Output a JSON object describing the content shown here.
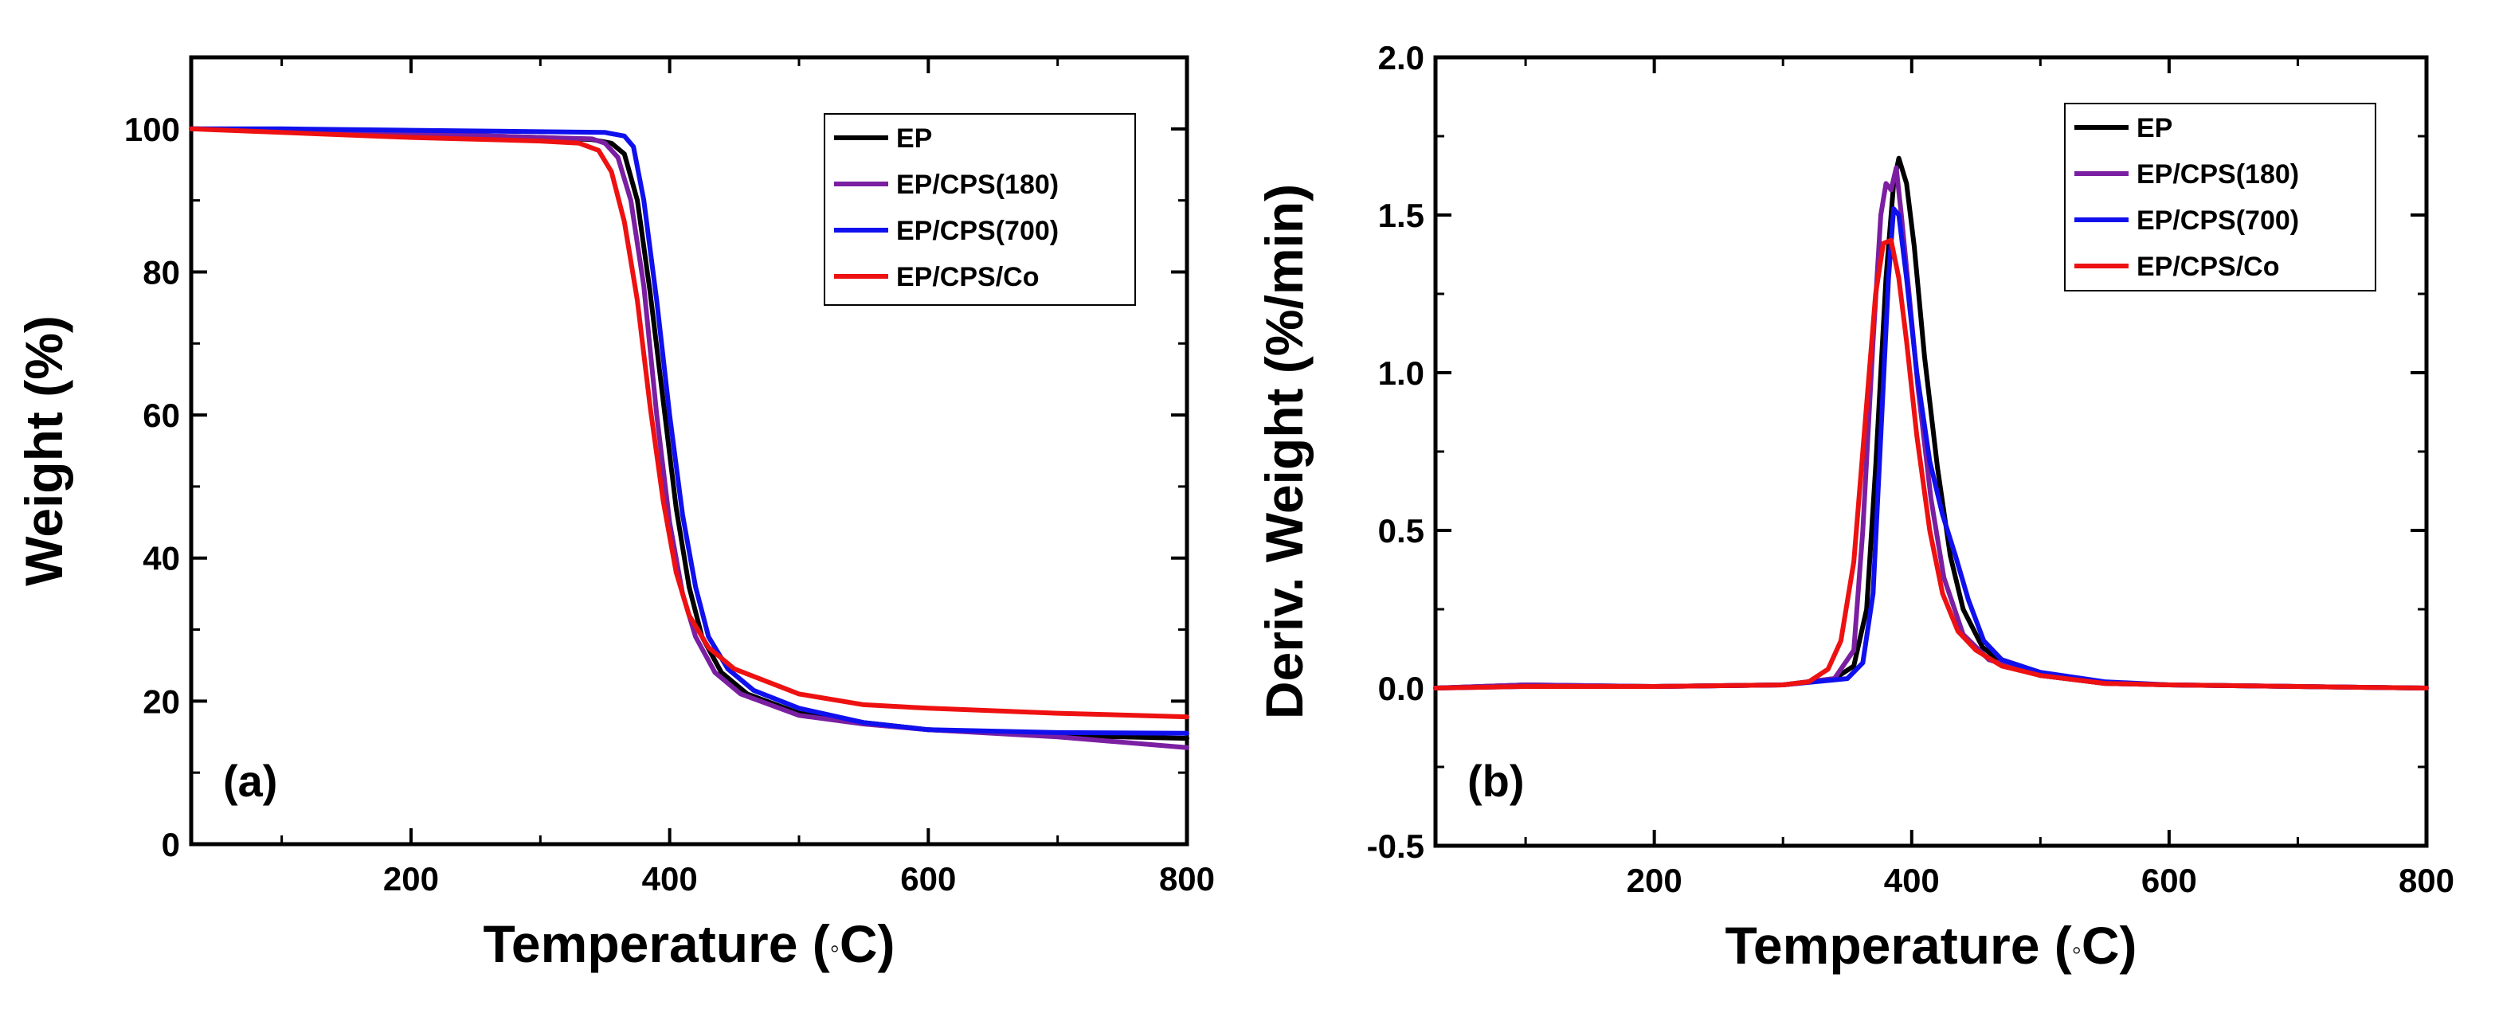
{
  "chart_data": [
    {
      "panel": "(a)",
      "type": "line",
      "xlabel_main": "Temperature (",
      "xlabel_unit": "C)",
      "degree_symbol": "◦",
      "ylabel": "Weight (%)",
      "xlim": [
        30,
        800
      ],
      "ylim": [
        0,
        110
      ],
      "xticks": [
        200,
        400,
        600,
        800
      ],
      "yticks": [
        0,
        20,
        40,
        60,
        80,
        100
      ],
      "xtick_labels": [
        "200",
        "400",
        "600",
        "800"
      ],
      "ytick_labels": [
        "0",
        "20",
        "40",
        "60",
        "80",
        "100"
      ],
      "legend_position": "top-right",
      "series": [
        {
          "name": "EP",
          "color": "#000000",
          "x": [
            30,
            100,
            200,
            300,
            340,
            355,
            365,
            375,
            385,
            395,
            405,
            415,
            425,
            440,
            460,
            500,
            550,
            600,
            700,
            800
          ],
          "y": [
            100,
            99.8,
            99.3,
            98.8,
            98.5,
            98,
            96.5,
            90,
            77,
            62,
            47,
            36,
            29,
            24,
            21,
            18.3,
            17,
            16,
            15.2,
            14.8
          ]
        },
        {
          "name": "EP/CPS(180)",
          "color": "#7B1FA2",
          "x": [
            30,
            100,
            200,
            300,
            340,
            350,
            360,
            370,
            380,
            390,
            400,
            410,
            420,
            435,
            455,
            500,
            550,
            600,
            700,
            800
          ],
          "y": [
            100,
            99.8,
            99.3,
            98.8,
            98.6,
            98,
            96,
            90,
            78,
            60,
            45,
            35,
            29,
            24,
            21,
            18,
            16.8,
            16,
            15,
            13.5
          ]
        },
        {
          "name": "EP/CPS(700)",
          "color": "#1010EE",
          "x": [
            30,
            100,
            200,
            300,
            350,
            365,
            372,
            380,
            390,
            400,
            410,
            420,
            430,
            445,
            465,
            500,
            550,
            600,
            700,
            800
          ],
          "y": [
            100,
            100,
            99.8,
            99.6,
            99.5,
            99,
            97.5,
            90,
            76,
            60,
            46,
            36,
            29,
            24.5,
            21.5,
            19,
            17,
            16,
            15.6,
            15.5
          ]
        },
        {
          "name": "EP/CPS/Co",
          "color": "#EE1111",
          "x": [
            30,
            100,
            200,
            300,
            330,
            345,
            355,
            365,
            375,
            385,
            395,
            405,
            415,
            430,
            450,
            500,
            550,
            600,
            700,
            800
          ],
          "y": [
            100,
            99.5,
            98.8,
            98.3,
            98,
            97,
            94,
            87,
            76,
            61,
            48,
            38,
            32,
            27.5,
            24.5,
            21,
            19.5,
            19,
            18.3,
            17.8
          ]
        }
      ]
    },
    {
      "panel": "(b)",
      "type": "line",
      "xlabel_main": "Temperature (",
      "xlabel_unit": "C)",
      "degree_symbol": "◦",
      "ylabel": "Deriv. Weight (%/min)",
      "xlim": [
        30,
        800
      ],
      "ylim": [
        -0.5,
        2.0
      ],
      "xticks": [
        200,
        400,
        600,
        800
      ],
      "yticks": [
        -0.5,
        0.0,
        0.5,
        1.0,
        1.5,
        2.0
      ],
      "xtick_labels": [
        "200",
        "400",
        "600",
        "800"
      ],
      "ytick_labels": [
        "-0.5",
        "0.0",
        "0.5",
        "1.0",
        "1.5",
        "2.0"
      ],
      "legend_position": "top-right",
      "series": [
        {
          "name": "EP",
          "color": "#000000",
          "x": [
            30,
            100,
            200,
            300,
            340,
            355,
            365,
            372,
            380,
            386,
            390,
            396,
            402,
            410,
            420,
            430,
            440,
            455,
            470,
            500,
            550,
            600,
            700,
            800
          ],
          "y": [
            0.0,
            0.01,
            0.005,
            0.01,
            0.03,
            0.07,
            0.25,
            0.7,
            1.3,
            1.6,
            1.68,
            1.6,
            1.4,
            1.05,
            0.7,
            0.42,
            0.25,
            0.13,
            0.08,
            0.04,
            0.015,
            0.01,
            0.005,
            0.0
          ]
        },
        {
          "name": "EP/CPS(180)",
          "color": "#7B1FA2",
          "x": [
            30,
            100,
            200,
            300,
            340,
            355,
            362,
            370,
            376,
            380,
            384,
            388,
            392,
            398,
            405,
            415,
            425,
            440,
            460,
            500,
            550,
            600,
            700,
            800
          ],
          "y": [
            0.0,
            0.01,
            0.005,
            0.01,
            0.03,
            0.12,
            0.5,
            1.1,
            1.5,
            1.6,
            1.58,
            1.65,
            1.5,
            1.25,
            0.95,
            0.6,
            0.35,
            0.17,
            0.09,
            0.04,
            0.015,
            0.01,
            0.005,
            0.0
          ]
        },
        {
          "name": "EP/CPS(700)",
          "color": "#1010EE",
          "x": [
            30,
            100,
            200,
            300,
            350,
            362,
            370,
            376,
            382,
            386,
            390,
            396,
            404,
            414,
            424,
            434,
            444,
            456,
            470,
            500,
            550,
            600,
            700,
            800
          ],
          "y": [
            0.0,
            0.005,
            0.005,
            0.01,
            0.03,
            0.08,
            0.3,
            0.8,
            1.3,
            1.52,
            1.5,
            1.3,
            1.0,
            0.72,
            0.55,
            0.42,
            0.28,
            0.15,
            0.09,
            0.05,
            0.02,
            0.01,
            0.005,
            0.0
          ]
        },
        {
          "name": "EP/CPS/Co",
          "color": "#EE1111",
          "x": [
            30,
            100,
            200,
            300,
            320,
            335,
            345,
            355,
            365,
            372,
            378,
            384,
            390,
            396,
            404,
            414,
            424,
            436,
            450,
            470,
            500,
            550,
            600,
            700,
            800
          ],
          "y": [
            0.0,
            0.005,
            0.005,
            0.01,
            0.02,
            0.06,
            0.15,
            0.4,
            0.9,
            1.25,
            1.41,
            1.42,
            1.3,
            1.1,
            0.8,
            0.5,
            0.3,
            0.18,
            0.12,
            0.07,
            0.04,
            0.015,
            0.01,
            0.005,
            0.0
          ]
        }
      ]
    }
  ]
}
